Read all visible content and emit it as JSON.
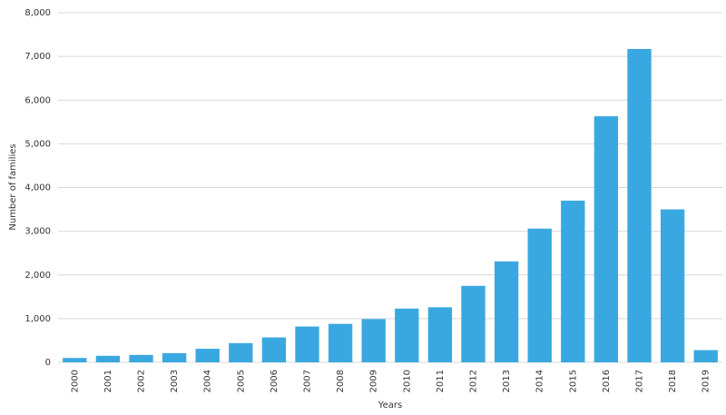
{
  "chart_data": {
    "type": "bar",
    "x_label": "Years",
    "y_label": "Number of families",
    "categories": [
      "2000",
      "2001",
      "2002",
      "2003",
      "2004",
      "2005",
      "2006",
      "2007",
      "2008",
      "2009",
      "2010",
      "2011",
      "2012",
      "2013",
      "2014",
      "2015",
      "2016",
      "2017",
      "2018",
      "2019"
    ],
    "values": [
      100,
      150,
      170,
      210,
      310,
      440,
      570,
      820,
      880,
      990,
      1230,
      1260,
      1750,
      2310,
      3060,
      3700,
      5630,
      7170,
      3500,
      280
    ],
    "color": "#3aa8e0",
    "ylim": [
      0,
      8000
    ],
    "yticks": [
      0,
      {
        "value": 1000,
        "label": "1,000"
      },
      {
        "value": 2000,
        "label": "2,000"
      },
      {
        "value": 3000,
        "label": "3,000"
      },
      {
        "value": 4000,
        "label": "4,000"
      },
      {
        "value": 5000,
        "label": "5,000"
      },
      {
        "value": 6000,
        "label": "6,000"
      },
      {
        "value": 7000,
        "label": "7,000"
      },
      {
        "value": 8000,
        "label": "8,000"
      }
    ],
    "grid": true
  }
}
